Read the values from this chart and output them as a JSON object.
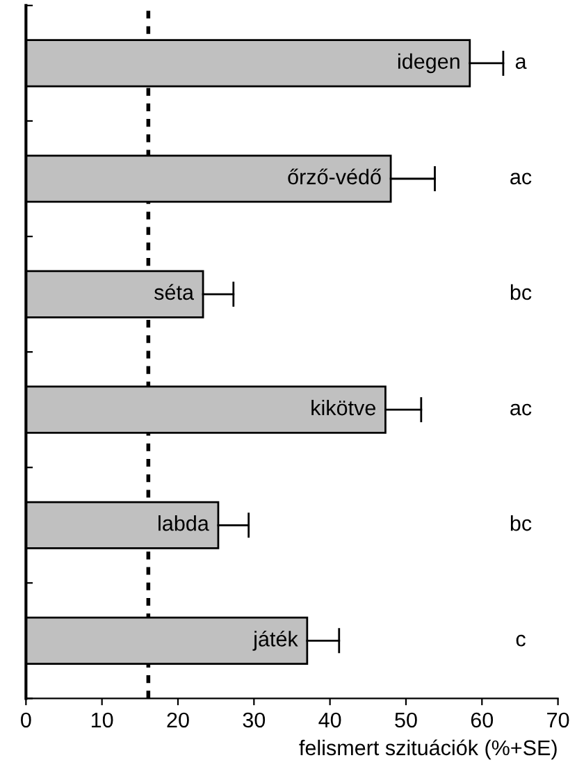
{
  "chart_data": {
    "type": "bar",
    "orientation": "horizontal",
    "xlabel": "felismert szituációk (%+SE)",
    "categories": [
      "idegen",
      "őrző-védő",
      "séta",
      "kikötve",
      "labda",
      "játék"
    ],
    "values": [
      58.4,
      48.0,
      23.3,
      47.3,
      25.3,
      37.0
    ],
    "errors": [
      [
        58.4,
        62.8
      ],
      [
        48.0,
        53.8
      ],
      [
        23.3,
        27.3
      ],
      [
        47.3,
        52.0
      ],
      [
        25.3,
        29.3
      ],
      [
        37.0,
        41.2
      ]
    ],
    "color": "#c0c0c0",
    "xlim": [
      0,
      70
    ],
    "xticks": [
      0,
      10,
      20,
      30,
      40,
      50,
      60,
      70
    ],
    "tick_labels": "x",
    "grid": false,
    "legend": false,
    "ref_lines": [
      {
        "axis": "x",
        "value": 16.1,
        "line_style": "dotted",
        "color": "#000000"
      }
    ],
    "annotations": [
      "a",
      "ac",
      "bc",
      "ac",
      "bc",
      "c"
    ]
  }
}
